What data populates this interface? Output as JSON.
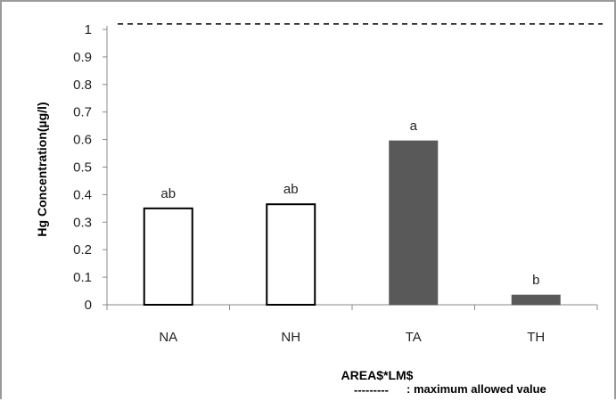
{
  "chart_data": {
    "type": "bar",
    "ylabel": "Hg Concentration(µg/l)",
    "xlabel": "AREA$*LM$",
    "ylim": [
      0,
      1
    ],
    "yticks": [
      "0",
      "0.1",
      "0.2",
      "0.3",
      "0.4",
      "0.5",
      "0.6",
      "0.7",
      "0.8",
      "0.9",
      "1"
    ],
    "categories": [
      "NA",
      "NH",
      "TA",
      "TH"
    ],
    "values": [
      0.35,
      0.365,
      0.595,
      0.035
    ],
    "data_labels": [
      "ab",
      "ab",
      "a",
      "b"
    ],
    "bar_fills": [
      "#ffffff",
      "#ffffff",
      "#595959",
      "#595959"
    ],
    "reference_line": {
      "value": 1.02,
      "style": "dashed"
    },
    "legend_note": {
      "dash": "---------",
      "text": ": maximum allowed value"
    },
    "grid": false
  }
}
